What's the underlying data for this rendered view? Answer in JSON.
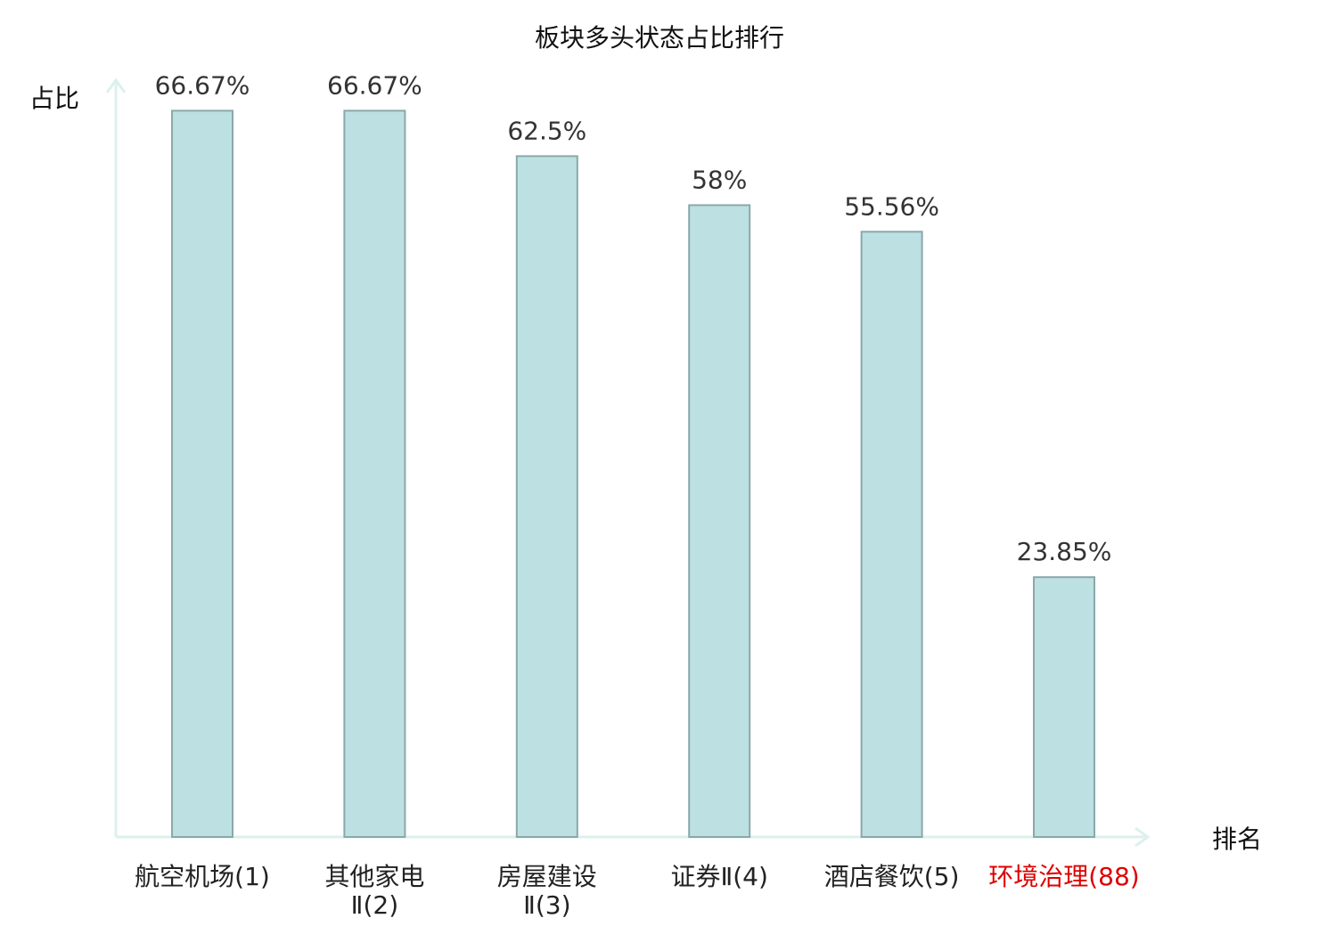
{
  "chart_data": {
    "type": "bar",
    "title": "板块多头状态占比排行",
    "ylabel": "占比",
    "xlabel": "排名",
    "categories": [
      {
        "name_lines": [
          "航空机场(1)"
        ],
        "highlight": false
      },
      {
        "name_lines": [
          "其他家电",
          "Ⅱ(2)"
        ],
        "highlight": false
      },
      {
        "name_lines": [
          "房屋建设",
          "Ⅱ(3)"
        ],
        "highlight": false
      },
      {
        "name_lines": [
          "证券Ⅱ(4)"
        ],
        "highlight": false
      },
      {
        "name_lines": [
          "酒店餐饮(5)"
        ],
        "highlight": false
      },
      {
        "name_lines": [
          "环境治理(88)"
        ],
        "highlight": true
      }
    ],
    "values": [
      66.67,
      66.67,
      62.5,
      58,
      55.56,
      23.85
    ],
    "value_labels": [
      "66.67%",
      "66.67%",
      "62.5%",
      "58%",
      "55.56%",
      "23.85%"
    ],
    "ylim": [
      0,
      70
    ],
    "grid": false,
    "legend": "none",
    "colors": {
      "bar_fill": "#bde0e3",
      "bar_stroke": "#8aa8aa",
      "axis": "#ddf0ee",
      "label_normal": "#222222",
      "label_highlight": "#dd0000"
    }
  }
}
